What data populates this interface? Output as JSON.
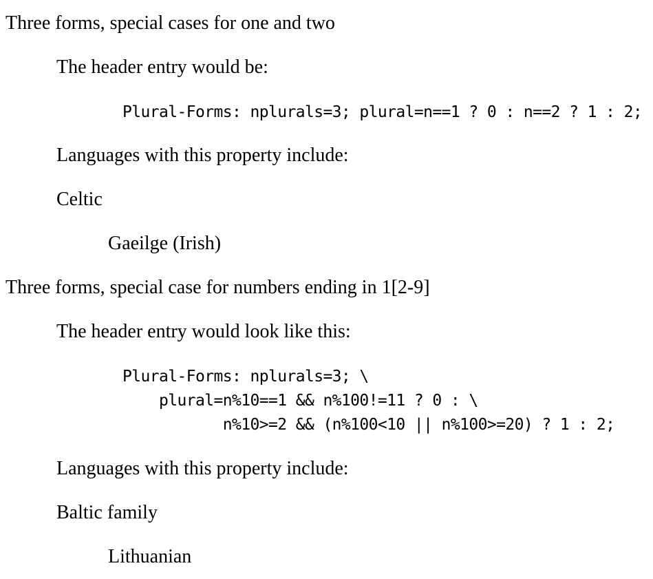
{
  "sections": [
    {
      "term": "Three forms, special cases for one and two",
      "header_intro": "The header entry would be:",
      "code_lines": [
        "Plural-Forms: nplurals=3; plural=n==1 ? 0 : n==2 ? 1 : 2;"
      ],
      "languages_intro": "Languages with this property include:",
      "family": "Celtic",
      "language": "Gaeilge (Irish)"
    },
    {
      "term": "Three forms, special case for numbers ending in 1[2-9]",
      "header_intro": "The header entry would look like this:",
      "code_lines": [
        "Plural-Forms: nplurals=3; \\",
        "    plural=n%10==1 && n%100!=11 ? 0 : \\",
        "           n%10>=2 && (n%100<10 || n%100>=20) ? 1 : 2;"
      ],
      "languages_intro": "Languages with this property include:",
      "family": "Baltic family",
      "language": "Lithuanian"
    }
  ]
}
